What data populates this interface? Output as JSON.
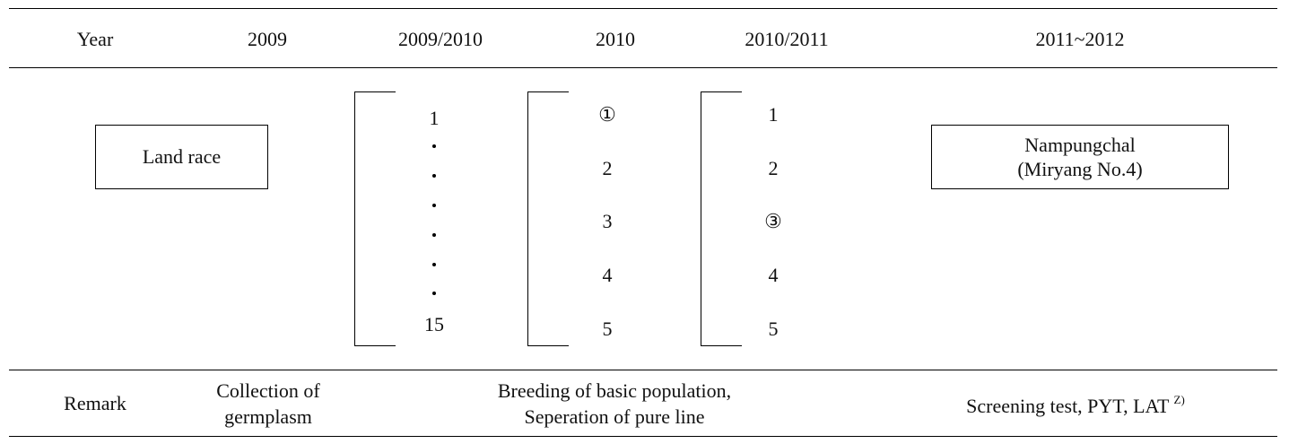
{
  "header": {
    "year": "Year",
    "col_2009": "2009",
    "col_2009_2010": "2009/2010",
    "col_2010": "2010",
    "col_2010_2011": "2010/2011",
    "col_2011_2012": "2011~2012"
  },
  "diagram": {
    "land_race": "Land race",
    "lines_2009_2010": {
      "first": "1",
      "last": "15",
      "dot_count": 7
    },
    "lines_2010": [
      "①",
      "2",
      "3",
      "4",
      "5"
    ],
    "lines_2010_2011": [
      "1",
      "2",
      "③",
      "4",
      "5"
    ],
    "variety": {
      "name": "Nampungchal",
      "alias": "(Miryang No.4)"
    }
  },
  "remark": {
    "label": "Remark",
    "collection": [
      "Collection of",
      "germplasm"
    ],
    "breeding": [
      "Breeding of basic population,",
      "Seperation of pure line"
    ],
    "screening": "Screening test, PYT, LAT",
    "screening_note": "Z)"
  }
}
